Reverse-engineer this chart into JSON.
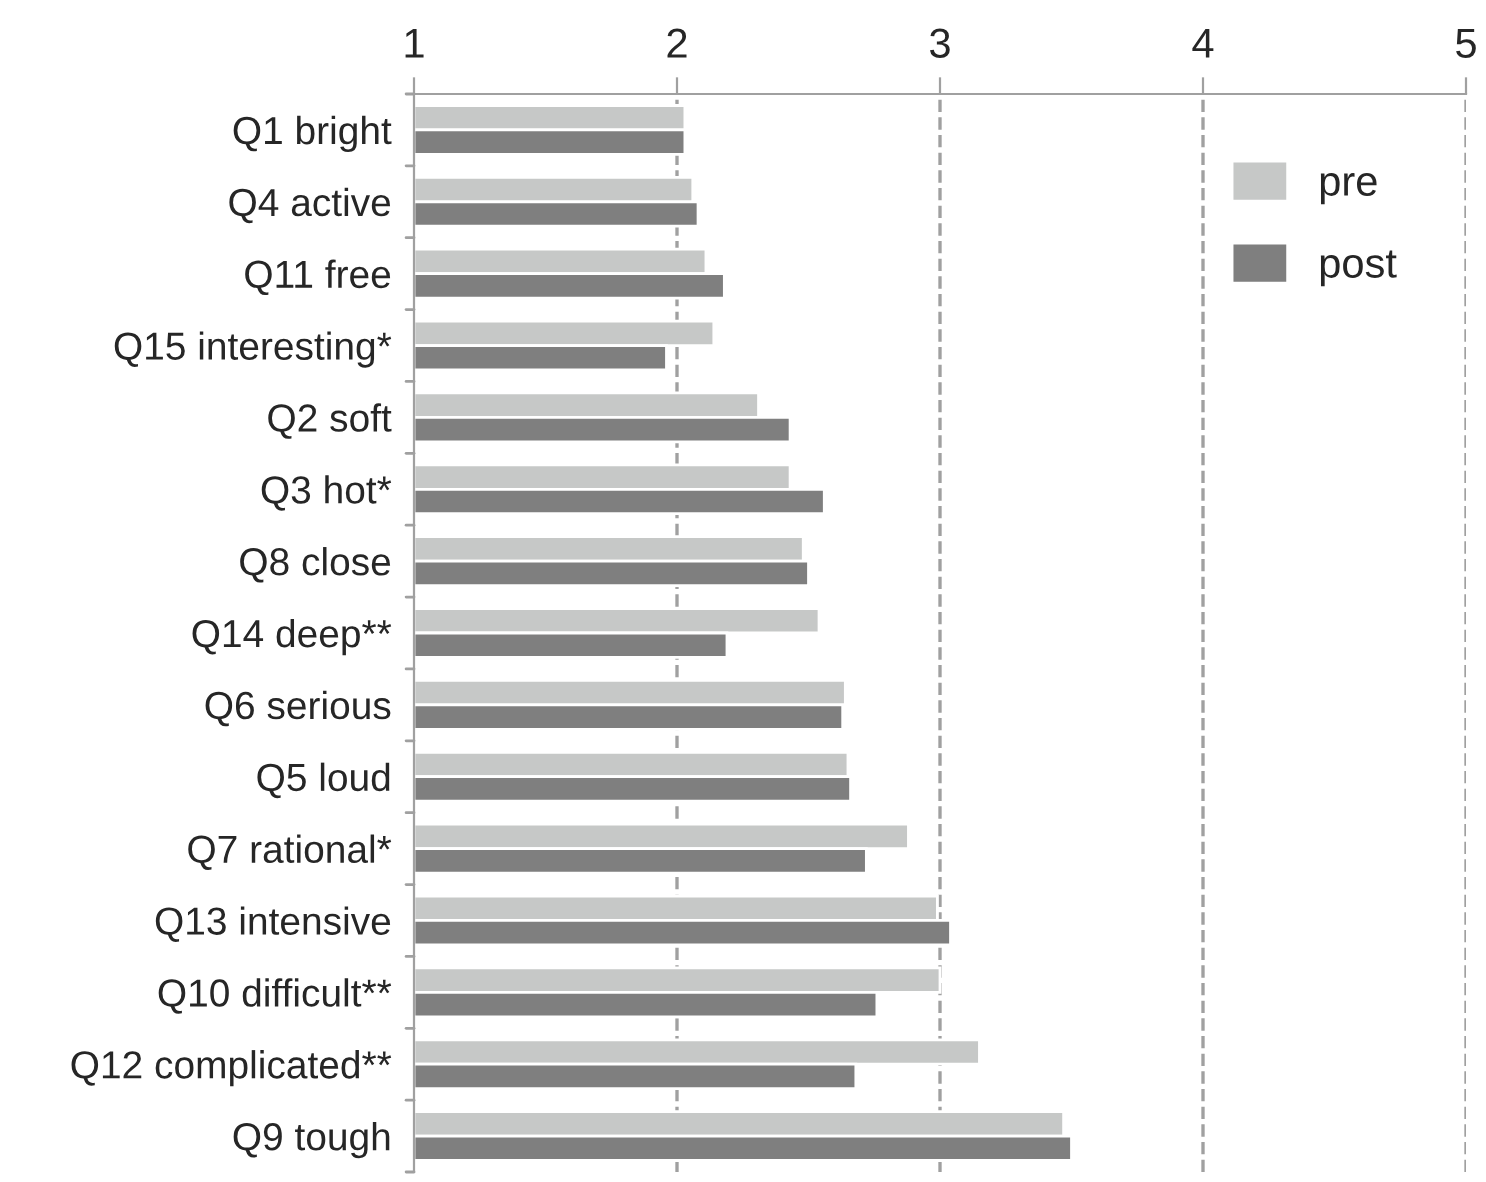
{
  "chart_data": {
    "type": "bar",
    "orientation": "horizontal",
    "categories": [
      "Q1 bright",
      "Q4 active",
      "Q11 free",
      "Q15 interesting*",
      "Q2 soft",
      "Q3 hot*",
      "Q8 close",
      "Q14 deep**",
      "Q6 serious",
      "Q5 loud",
      "Q7 rational*",
      "Q13 intensive",
      "Q10 difficult**",
      "Q12 complicated**",
      "Q9 tough"
    ],
    "series": [
      {
        "name": "pre",
        "color": "#c6c8c7",
        "values": [
          2.03,
          2.06,
          2.11,
          2.14,
          2.31,
          2.43,
          2.48,
          2.54,
          2.64,
          2.65,
          2.88,
          2.99,
          3.0,
          3.15,
          3.47
        ]
      },
      {
        "name": "post",
        "color": "#7f7f7f",
        "values": [
          2.03,
          2.08,
          2.18,
          1.96,
          2.43,
          2.56,
          2.5,
          2.19,
          2.63,
          2.66,
          2.72,
          3.04,
          2.76,
          2.68,
          3.5
        ]
      }
    ],
    "xlim": [
      1,
      5
    ],
    "xticks": [
      1,
      2,
      3,
      4,
      5
    ],
    "grid": "x",
    "legend": "top right",
    "line_style": "dashed"
  }
}
